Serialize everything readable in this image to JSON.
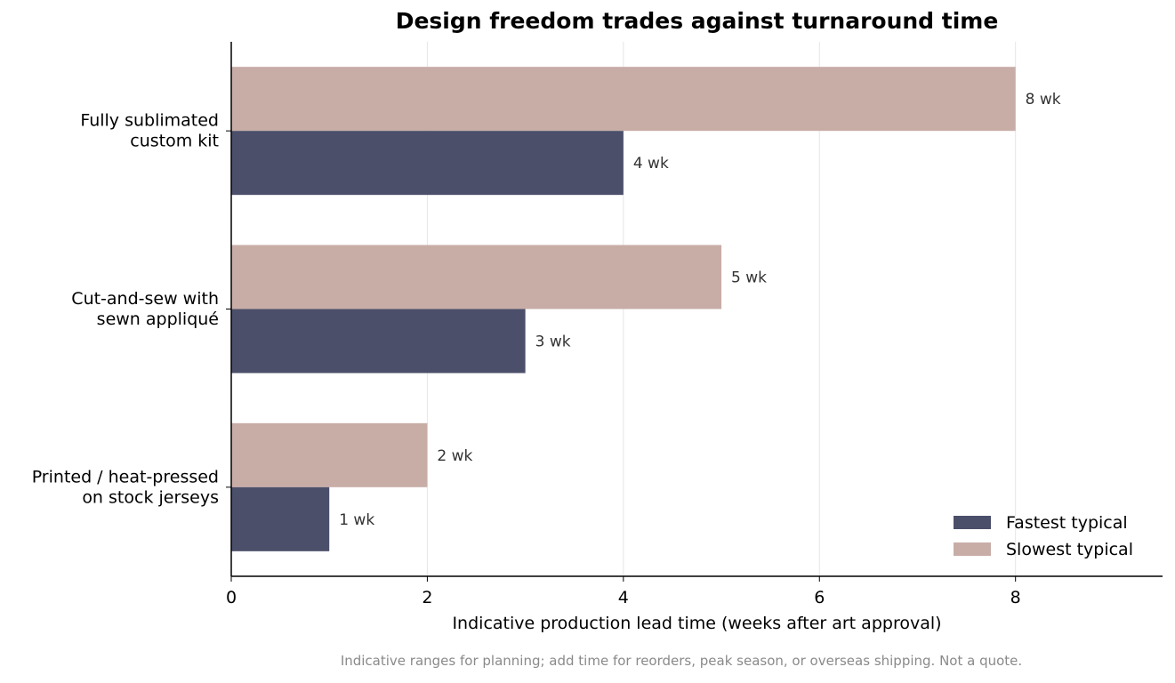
{
  "chart_data": {
    "type": "bar",
    "orientation": "horizontal",
    "title": "Design freedom trades against turnaround time",
    "xlabel": "Indicative production lead time (weeks after art approval)",
    "ylabel": "",
    "xlim": [
      0,
      9.5
    ],
    "xticks": [
      0,
      2,
      4,
      6,
      8
    ],
    "grid": "vertical",
    "legend_position": "bottom-right",
    "categories": [
      [
        "Fully sublimated",
        "custom kit"
      ],
      [
        "Cut-and-sew with",
        "sewn appliqué"
      ],
      [
        "Printed / heat-pressed",
        "on stock jerseys"
      ]
    ],
    "series": [
      {
        "name": "Fastest typical",
        "color": "#4b4f6a",
        "values": [
          4,
          3,
          1
        ],
        "labels": [
          "4 wk",
          "3 wk",
          "1 wk"
        ]
      },
      {
        "name": "Slowest typical",
        "color": "#c8ada7",
        "values": [
          8,
          5,
          2
        ],
        "labels": [
          "8 wk",
          "5 wk",
          "2 wk"
        ]
      }
    ]
  },
  "footnote": "Indicative ranges for planning; add time for reorders, peak season, or overseas shipping. Not a quote."
}
